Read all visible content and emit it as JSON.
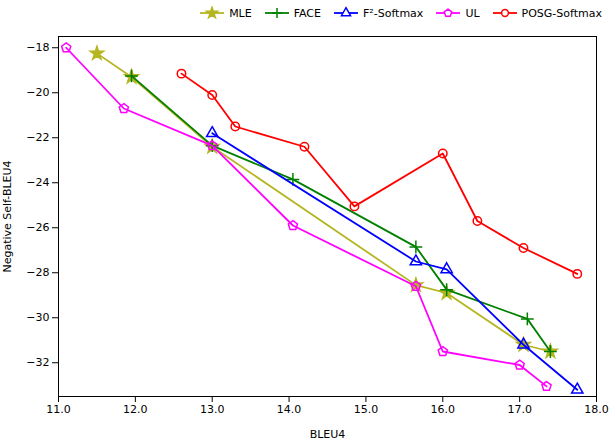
{
  "chart_data": {
    "type": "line",
    "xlabel": "BLEU4",
    "ylabel": "Negative Self-BLEU4",
    "xlim": [
      11,
      18
    ],
    "ylim": [
      -33.5,
      -17.5
    ],
    "xticks": [
      11,
      12,
      13,
      14,
      15,
      16,
      17,
      18
    ],
    "yticks": [
      -18,
      -20,
      -22,
      -24,
      -26,
      -28,
      -30,
      -32
    ],
    "grid": false,
    "legend": "upper right",
    "series": [
      {
        "name": "MLE",
        "color": "#b5b520",
        "marker": "star",
        "x": [
          11.5,
          11.95,
          13.0,
          15.65,
          16.05,
          17.05,
          17.4
        ],
        "values": [
          -18.25,
          -19.3,
          -22.4,
          -28.55,
          -28.9,
          -31.2,
          -31.5
        ]
      },
      {
        "name": "FACE",
        "color": "#008000",
        "marker": "plus",
        "x": [
          11.95,
          13.0,
          14.05,
          15.65,
          16.05,
          17.1,
          17.4
        ],
        "values": [
          -19.25,
          -22.35,
          -23.85,
          -26.85,
          -28.75,
          -30.05,
          -31.5
        ]
      },
      {
        "name": "F²-Softmax",
        "color": "#0000FF",
        "marker": "triangle_open",
        "x": [
          13.0,
          15.65,
          16.05,
          17.05,
          17.75
        ],
        "values": [
          -21.8,
          -27.5,
          -27.85,
          -31.2,
          -33.2
        ]
      },
      {
        "name": "UL",
        "color": "#FF00FF",
        "marker": "pentagon_open",
        "x": [
          11.1,
          11.85,
          13.0,
          14.05,
          15.65,
          16.0,
          17.0,
          17.35
        ],
        "values": [
          -18.0,
          -20.7,
          -22.35,
          -25.9,
          -28.6,
          -31.5,
          -32.1,
          -33.05
        ]
      },
      {
        "name": "POSG-Softmax",
        "color": "#FF0000",
        "marker": "circle_open",
        "x": [
          12.6,
          13.0,
          13.3,
          14.2,
          14.85,
          16.0,
          16.45,
          17.05,
          17.75
        ],
        "values": [
          -19.15,
          -20.1,
          -21.5,
          -22.4,
          -25.05,
          -22.7,
          -25.7,
          -26.9,
          -28.05
        ]
      }
    ]
  }
}
